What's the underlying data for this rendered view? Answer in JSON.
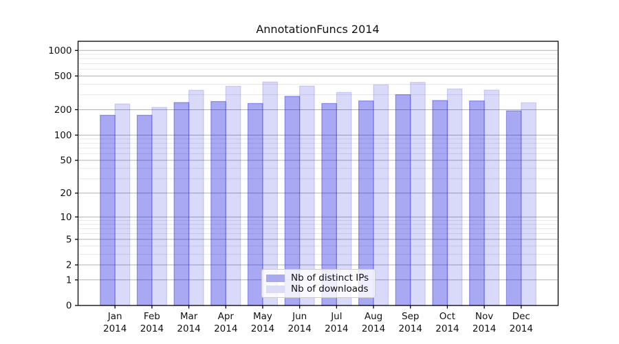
{
  "title": "AnnotationFuncs 2014",
  "chart_data": {
    "type": "bar",
    "title": "AnnotationFuncs 2014",
    "x": {
      "months": [
        "Jan",
        "Feb",
        "Mar",
        "Apr",
        "May",
        "Jun",
        "Jul",
        "Aug",
        "Sep",
        "Oct",
        "Nov",
        "Dec"
      ],
      "year": "2014"
    },
    "series": [
      {
        "name": "Nb of distinct IPs",
        "values": [
          172,
          172,
          243,
          250,
          237,
          288,
          237,
          254,
          301,
          257,
          254,
          194
        ],
        "color": "rgba(0,0,220,0.34)",
        "swatch": "#a9a9ee"
      },
      {
        "name": "Nb of downloads",
        "values": [
          234,
          213,
          340,
          378,
          425,
          381,
          320,
          393,
          421,
          352,
          341,
          242
        ],
        "color": "rgba(0,0,220,0.15)",
        "swatch": "#dcdcf8"
      }
    ],
    "yscale": "log1p",
    "yticks": [
      0,
      1,
      2,
      5,
      10,
      20,
      50,
      100,
      200,
      500,
      1000
    ],
    "ylim": [
      0,
      1280
    ],
    "grid": "both",
    "legend_position": "lower center",
    "colors": {
      "major_grid": "#b2b2b2",
      "minor_grid": "#e7e7e7",
      "spine": "#000000",
      "text": "#111111"
    }
  }
}
